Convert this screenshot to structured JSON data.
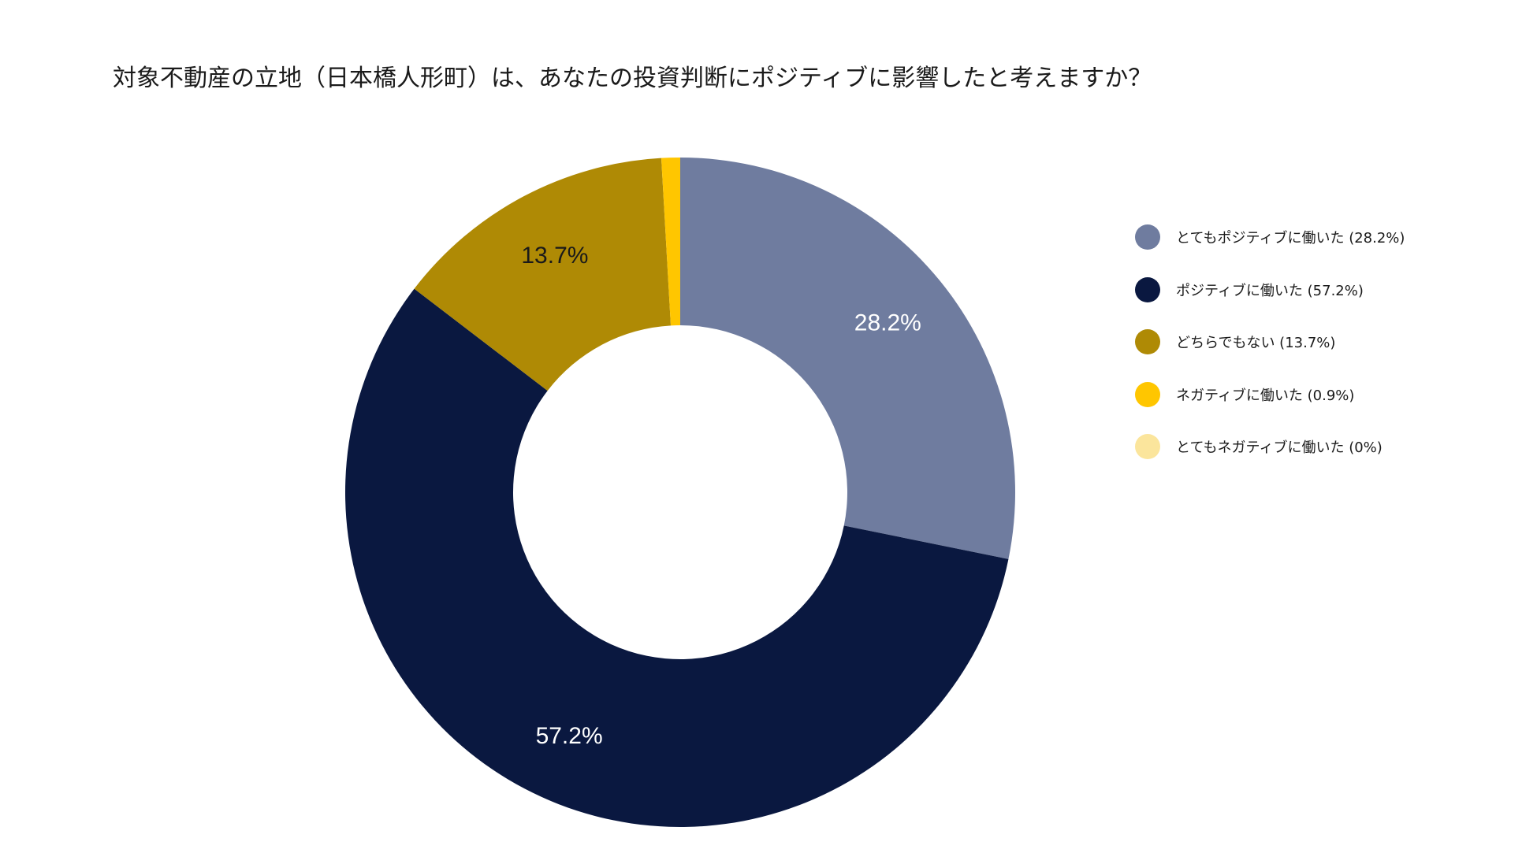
{
  "chart_data": {
    "type": "pie",
    "title": "対象不動産の立地（日本橋人形町）は、あなたの投資判断にポジティブに影響したと考えますか？",
    "donut": true,
    "categories": [
      "とてもポジティブに働いた",
      "ポジティブに働いた",
      "どちらでもない",
      "ネガティブに働いた",
      "とてもネガティブに働いた"
    ],
    "values": [
      28.2,
      57.2,
      13.7,
      0.9,
      0
    ],
    "value_labels": [
      "28.2%",
      "57.2%",
      "13.7%",
      "",
      ""
    ],
    "legend_labels": [
      "とてもポジティブに働いた (28.2%)",
      "ポジティブに働いた (57.2%)",
      "どちらでもない (13.7%)",
      "ネガティブに働いた (0.9%)",
      "とてもネガティブに働いた (0%)"
    ],
    "colors": [
      "#6F7C9F",
      "#0A1840",
      "#AF8A05",
      "#FFC600",
      "#FBE59C"
    ],
    "label_colors": [
      "#ffffff",
      "#ffffff",
      "#1a1a1a",
      "#1a1a1a",
      "#1a1a1a"
    ],
    "legend_position": "right"
  }
}
